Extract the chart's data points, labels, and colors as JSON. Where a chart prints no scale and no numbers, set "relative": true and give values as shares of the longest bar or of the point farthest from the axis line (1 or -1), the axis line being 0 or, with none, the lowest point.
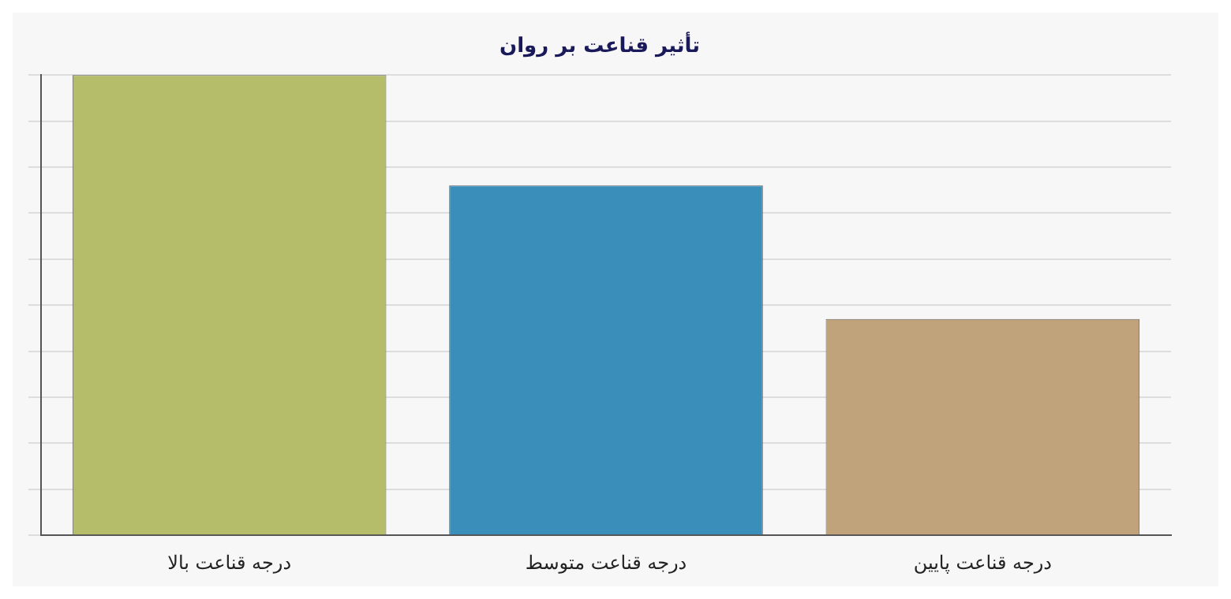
{
  "chart_data": {
    "type": "bar",
    "title": "تأثیر قناعت بر روان",
    "relative": true,
    "grid": "y",
    "legend": false,
    "categories": [
      "درجه قناعت بالا",
      "درجه قناعت متوسط",
      "درجه قناعت پایین"
    ],
    "values": [
      1,
      0.76,
      0.47
    ],
    "colors": [
      "#b5bd6a",
      "#3a8fba",
      "#c0a37a"
    ]
  }
}
